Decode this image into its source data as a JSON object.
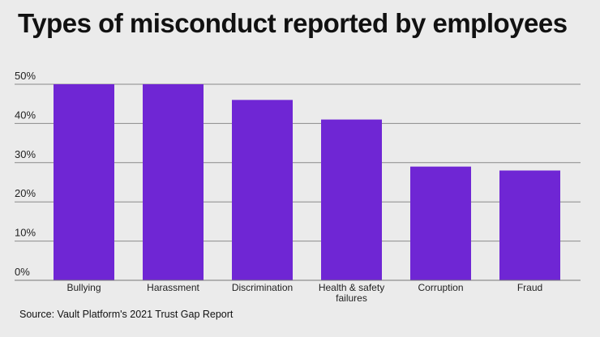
{
  "chart_data": {
    "type": "bar",
    "title": "Types of misconduct reported by employees",
    "source": "Source: Vault Platform's 2021 Trust Gap Report",
    "categories": [
      [
        "Bullying"
      ],
      [
        "Harassment"
      ],
      [
        "Discrimination"
      ],
      [
        "Health & safety",
        "failures"
      ],
      [
        "Corruption"
      ],
      [
        "Fraud"
      ]
    ],
    "values": [
      50,
      50,
      46,
      41,
      29,
      28
    ],
    "unit": "%",
    "ylim": [
      0,
      50
    ],
    "yticks": [
      0,
      10,
      20,
      30,
      40,
      50
    ],
    "ytick_labels": [
      "0%",
      "10%",
      "20%",
      "30%",
      "40%",
      "50%"
    ],
    "grid": true,
    "bar_color": "#6f26d4",
    "xlabel": "",
    "ylabel": ""
  }
}
